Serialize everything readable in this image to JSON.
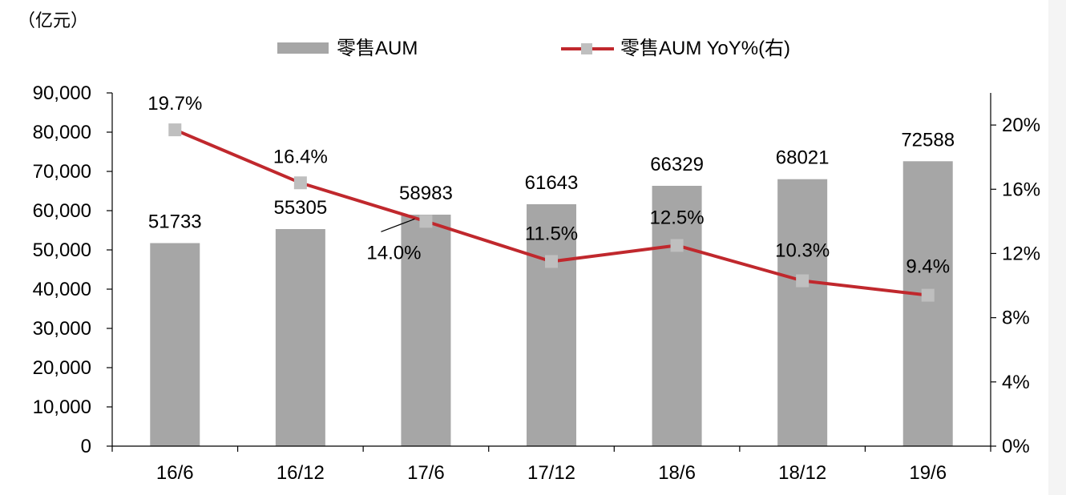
{
  "chart_data": {
    "type": "bar",
    "unit_label": "（亿元）",
    "categories": [
      "16/6",
      "16/12",
      "17/6",
      "17/12",
      "18/6",
      "18/12",
      "19/6"
    ],
    "series": [
      {
        "name": "零售AUM",
        "type": "bar",
        "axis": "left",
        "values": [
          51733,
          55305,
          58983,
          61643,
          66329,
          68021,
          72588
        ],
        "labels": [
          "51733",
          "55305",
          "58983",
          "61643",
          "66329",
          "68021",
          "72588"
        ]
      },
      {
        "name": "零售AUM YoY%(右)",
        "type": "line",
        "axis": "right",
        "values": [
          19.7,
          16.4,
          14.0,
          11.5,
          12.5,
          10.3,
          9.4
        ],
        "labels": [
          "19.7%",
          "16.4%",
          "14.0%",
          "11.5%",
          "12.5%",
          "10.3%",
          "9.4%"
        ]
      }
    ],
    "y_left": {
      "ylim": [
        0,
        90000
      ],
      "ticks": [
        "0",
        "10,000",
        "20,000",
        "30,000",
        "40,000",
        "50,000",
        "60,000",
        "70,000",
        "80,000",
        "90,000"
      ]
    },
    "y_right": {
      "ylim": [
        0,
        22
      ],
      "ticks": [
        "0%",
        "4%",
        "8%",
        "12%",
        "16%",
        "20%"
      ]
    },
    "grid": false,
    "legend_position": "top",
    "colors": {
      "bar": "#a6a6a6",
      "line": "#c0282d",
      "marker": "#bfbfbf",
      "axis": "#000000"
    }
  }
}
